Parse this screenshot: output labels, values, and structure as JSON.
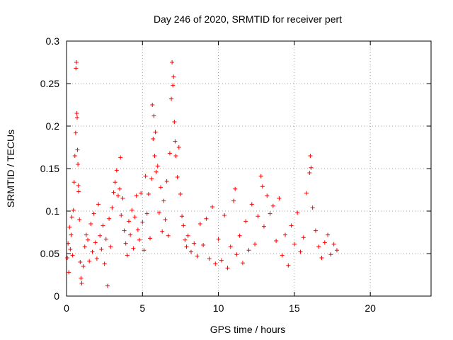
{
  "chart_data": {
    "type": "scatter",
    "title": "Day 246 of 2020, SRMTID for receiver pert",
    "xlabel": "GPS time / hours",
    "ylabel": "SRMTID / TECUs",
    "xlim": [
      0,
      24
    ],
    "ylim": [
      0,
      0.3
    ],
    "xticks": [
      0,
      5,
      10,
      15,
      20
    ],
    "xtick_labels": [
      "0",
      "5",
      "10",
      "15",
      "20"
    ],
    "yticks": [
      0,
      0.05,
      0.1,
      0.15,
      0.2,
      0.25,
      0.3
    ],
    "ytick_labels": [
      "0",
      "0.05",
      "0.1",
      "0.15",
      "0.2",
      "0.25",
      "0.3"
    ],
    "grid": true,
    "marker": "+",
    "color": "#ff0000",
    "data_extent_hours": [
      0,
      17.8
    ],
    "series": [
      {
        "name": "SRMTID",
        "points": [
          [
            0.05,
            0.045
          ],
          [
            0.1,
            0.062
          ],
          [
            0.15,
            0.028
          ],
          [
            0.2,
            0.081
          ],
          [
            0.25,
            0.055
          ],
          [
            0.3,
            0.072
          ],
          [
            0.35,
            0.093
          ],
          [
            0.4,
            0.048
          ],
          [
            0.45,
            0.101
          ],
          [
            0.5,
            0.134
          ],
          [
            0.55,
            0.165
          ],
          [
            0.6,
            0.192
          ],
          [
            0.62,
            0.268
          ],
          [
            0.65,
            0.275
          ],
          [
            0.68,
            0.215
          ],
          [
            0.7,
            0.21
          ],
          [
            0.72,
            0.172
          ],
          [
            0.75,
            0.155
          ],
          [
            0.78,
            0.13
          ],
          [
            0.8,
            0.123
          ],
          [
            0.85,
            0.09
          ],
          [
            0.9,
            0.04
          ],
          [
            0.95,
            0.021
          ],
          [
            1.0,
            0.015
          ],
          [
            1.1,
            0.035
          ],
          [
            1.2,
            0.058
          ],
          [
            1.3,
            0.072
          ],
          [
            1.4,
            0.066
          ],
          [
            1.5,
            0.041
          ],
          [
            1.6,
            0.085
          ],
          [
            1.7,
            0.052
          ],
          [
            1.8,
            0.097
          ],
          [
            1.9,
            0.063
          ],
          [
            2.0,
            0.044
          ],
          [
            2.1,
            0.108
          ],
          [
            2.2,
            0.071
          ],
          [
            2.3,
            0.055
          ],
          [
            2.4,
            0.083
          ],
          [
            2.5,
            0.038
          ],
          [
            2.6,
            0.067
          ],
          [
            2.7,
            0.012
          ],
          [
            2.8,
            0.091
          ],
          [
            2.9,
            0.058
          ],
          [
            3.0,
            0.104
          ],
          [
            3.1,
            0.122
          ],
          [
            3.2,
            0.134
          ],
          [
            3.3,
            0.148
          ],
          [
            3.4,
            0.118
          ],
          [
            3.5,
            0.126
          ],
          [
            3.55,
            0.163
          ],
          [
            3.6,
            0.095
          ],
          [
            3.7,
            0.115
          ],
          [
            3.8,
            0.077
          ],
          [
            3.9,
            0.062
          ],
          [
            4.0,
            0.048
          ],
          [
            4.1,
            0.088
          ],
          [
            4.2,
            0.072
          ],
          [
            4.3,
            0.101
          ],
          [
            4.4,
            0.056
          ],
          [
            4.5,
            0.093
          ],
          [
            4.6,
            0.118
          ],
          [
            4.7,
            0.078
          ],
          [
            4.8,
            0.066
          ],
          [
            4.9,
            0.121
          ],
          [
            5.0,
            0.087
          ],
          [
            5.1,
            0.054
          ],
          [
            5.2,
            0.141
          ],
          [
            5.3,
            0.097
          ],
          [
            5.4,
            0.12
          ],
          [
            5.5,
            0.068
          ],
          [
            5.6,
            0.138
          ],
          [
            5.65,
            0.225
          ],
          [
            5.7,
            0.185
          ],
          [
            5.75,
            0.212
          ],
          [
            5.8,
            0.165
          ],
          [
            5.85,
            0.193
          ],
          [
            5.9,
            0.146
          ],
          [
            6.0,
            0.153
          ],
          [
            6.1,
            0.098
          ],
          [
            6.2,
            0.128
          ],
          [
            6.3,
            0.076
          ],
          [
            6.4,
            0.112
          ],
          [
            6.5,
            0.09
          ],
          [
            6.6,
            0.135
          ],
          [
            6.7,
            0.071
          ],
          [
            6.8,
            0.168
          ],
          [
            6.9,
            0.232
          ],
          [
            6.95,
            0.275
          ],
          [
            7.0,
            0.248
          ],
          [
            7.05,
            0.258
          ],
          [
            7.1,
            0.205
          ],
          [
            7.15,
            0.182
          ],
          [
            7.2,
            0.165
          ],
          [
            7.3,
            0.14
          ],
          [
            7.4,
            0.175
          ],
          [
            7.5,
            0.12
          ],
          [
            7.6,
            0.094
          ],
          [
            7.7,
            0.083
          ],
          [
            7.8,
            0.066
          ],
          [
            7.9,
            0.058
          ],
          [
            8.0,
            0.071
          ],
          [
            8.2,
            0.052
          ],
          [
            8.4,
            0.062
          ],
          [
            8.6,
            0.047
          ],
          [
            8.8,
            0.085
          ],
          [
            9.0,
            0.06
          ],
          [
            9.2,
            0.091
          ],
          [
            9.4,
            0.044
          ],
          [
            9.6,
            0.105
          ],
          [
            9.8,
            0.038
          ],
          [
            10.0,
            0.067
          ],
          [
            10.2,
            0.042
          ],
          [
            10.4,
            0.095
          ],
          [
            10.6,
            0.033
          ],
          [
            10.8,
            0.058
          ],
          [
            11.0,
            0.112
          ],
          [
            11.1,
            0.126
          ],
          [
            11.2,
            0.049
          ],
          [
            11.4,
            0.071
          ],
          [
            11.6,
            0.039
          ],
          [
            11.8,
            0.088
          ],
          [
            12.0,
            0.054
          ],
          [
            12.2,
            0.108
          ],
          [
            12.4,
            0.061
          ],
          [
            12.6,
            0.094
          ],
          [
            12.8,
            0.141
          ],
          [
            12.9,
            0.129
          ],
          [
            13.0,
            0.082
          ],
          [
            13.2,
            0.118
          ],
          [
            13.4,
            0.097
          ],
          [
            13.6,
            0.106
          ],
          [
            13.8,
            0.065
          ],
          [
            14.0,
            0.115
          ],
          [
            14.2,
            0.048
          ],
          [
            14.4,
            0.072
          ],
          [
            14.6,
            0.036
          ],
          [
            14.8,
            0.083
          ],
          [
            15.0,
            0.061
          ],
          [
            15.2,
            0.098
          ],
          [
            15.4,
            0.052
          ],
          [
            15.6,
            0.069
          ],
          [
            15.8,
            0.121
          ],
          [
            16.0,
            0.145
          ],
          [
            16.05,
            0.165
          ],
          [
            16.1,
            0.151
          ],
          [
            16.2,
            0.104
          ],
          [
            16.4,
            0.077
          ],
          [
            16.6,
            0.058
          ],
          [
            16.8,
            0.045
          ],
          [
            17.0,
            0.063
          ],
          [
            17.2,
            0.072
          ],
          [
            17.4,
            0.049
          ],
          [
            17.6,
            0.061
          ],
          [
            17.8,
            0.054
          ]
        ]
      }
    ]
  }
}
